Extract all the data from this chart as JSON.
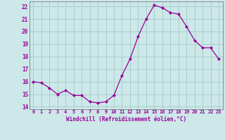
{
  "x": [
    0,
    1,
    2,
    3,
    4,
    5,
    6,
    7,
    8,
    9,
    10,
    11,
    12,
    13,
    14,
    15,
    16,
    17,
    18,
    19,
    20,
    21,
    22,
    23
  ],
  "y": [
    16.0,
    15.9,
    15.5,
    15.0,
    15.3,
    14.9,
    14.9,
    14.4,
    14.3,
    14.4,
    14.9,
    16.5,
    17.8,
    19.6,
    21.0,
    22.1,
    21.9,
    21.5,
    21.4,
    20.4,
    19.3,
    18.7,
    18.7,
    17.8
  ],
  "line_color": "#990099",
  "marker": "D",
  "marker_size": 2.0,
  "bg_color": "#cce8e8",
  "grid_color": "#aacece",
  "xlabel": "Windchill (Refroidissement éolien,°C)",
  "xlim": [
    -0.5,
    23.5
  ],
  "ylim": [
    13.8,
    22.4
  ],
  "yticks": [
    14,
    15,
    16,
    17,
    18,
    19,
    20,
    21,
    22
  ],
  "xticks": [
    0,
    1,
    2,
    3,
    4,
    5,
    6,
    7,
    8,
    9,
    10,
    11,
    12,
    13,
    14,
    15,
    16,
    17,
    18,
    19,
    20,
    21,
    22,
    23
  ],
  "tick_color": "#990099",
  "label_color": "#990099",
  "spine_color": "#888899"
}
